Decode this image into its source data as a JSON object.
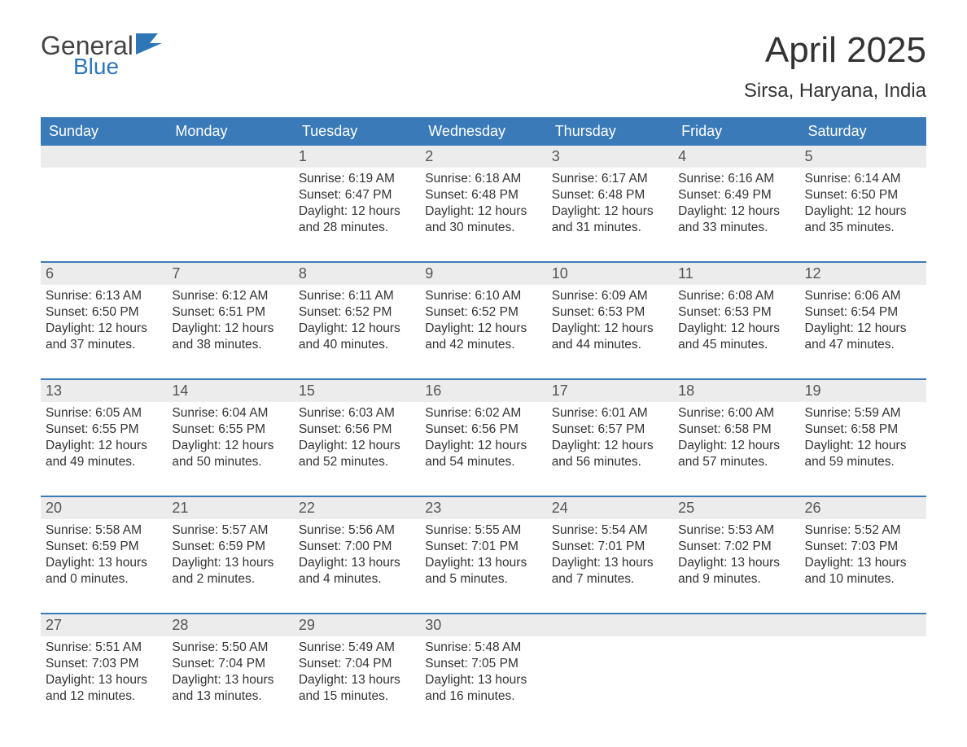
{
  "logo": {
    "general": "General",
    "blue": "Blue",
    "mark_fill": "#2f76b6"
  },
  "title": "April 2025",
  "location": "Sirsa, Haryana, India",
  "colors": {
    "header_bg": "#3a7ab8",
    "header_text": "#ffffff",
    "daynum_bg": "#ececec",
    "body_text": "#333333",
    "page_bg": "#ffffff",
    "week_border": "#3a7ab8"
  },
  "font_sizes": {
    "title_pt": 44,
    "location_pt": 24,
    "weekday_pt": 18,
    "daynum_pt": 18,
    "body_pt": 15.5
  },
  "weekdays": [
    "Sunday",
    "Monday",
    "Tuesday",
    "Wednesday",
    "Thursday",
    "Friday",
    "Saturday"
  ],
  "weeks": [
    [
      {
        "blank": true
      },
      {
        "blank": true
      },
      {
        "n": "1",
        "sunrise": "Sunrise: 6:19 AM",
        "sunset": "Sunset: 6:47 PM",
        "daylight": "Daylight: 12 hours and 28 minutes."
      },
      {
        "n": "2",
        "sunrise": "Sunrise: 6:18 AM",
        "sunset": "Sunset: 6:48 PM",
        "daylight": "Daylight: 12 hours and 30 minutes."
      },
      {
        "n": "3",
        "sunrise": "Sunrise: 6:17 AM",
        "sunset": "Sunset: 6:48 PM",
        "daylight": "Daylight: 12 hours and 31 minutes."
      },
      {
        "n": "4",
        "sunrise": "Sunrise: 6:16 AM",
        "sunset": "Sunset: 6:49 PM",
        "daylight": "Daylight: 12 hours and 33 minutes."
      },
      {
        "n": "5",
        "sunrise": "Sunrise: 6:14 AM",
        "sunset": "Sunset: 6:50 PM",
        "daylight": "Daylight: 12 hours and 35 minutes."
      }
    ],
    [
      {
        "n": "6",
        "sunrise": "Sunrise: 6:13 AM",
        "sunset": "Sunset: 6:50 PM",
        "daylight": "Daylight: 12 hours and 37 minutes."
      },
      {
        "n": "7",
        "sunrise": "Sunrise: 6:12 AM",
        "sunset": "Sunset: 6:51 PM",
        "daylight": "Daylight: 12 hours and 38 minutes."
      },
      {
        "n": "8",
        "sunrise": "Sunrise: 6:11 AM",
        "sunset": "Sunset: 6:52 PM",
        "daylight": "Daylight: 12 hours and 40 minutes."
      },
      {
        "n": "9",
        "sunrise": "Sunrise: 6:10 AM",
        "sunset": "Sunset: 6:52 PM",
        "daylight": "Daylight: 12 hours and 42 minutes."
      },
      {
        "n": "10",
        "sunrise": "Sunrise: 6:09 AM",
        "sunset": "Sunset: 6:53 PM",
        "daylight": "Daylight: 12 hours and 44 minutes."
      },
      {
        "n": "11",
        "sunrise": "Sunrise: 6:08 AM",
        "sunset": "Sunset: 6:53 PM",
        "daylight": "Daylight: 12 hours and 45 minutes."
      },
      {
        "n": "12",
        "sunrise": "Sunrise: 6:06 AM",
        "sunset": "Sunset: 6:54 PM",
        "daylight": "Daylight: 12 hours and 47 minutes."
      }
    ],
    [
      {
        "n": "13",
        "sunrise": "Sunrise: 6:05 AM",
        "sunset": "Sunset: 6:55 PM",
        "daylight": "Daylight: 12 hours and 49 minutes."
      },
      {
        "n": "14",
        "sunrise": "Sunrise: 6:04 AM",
        "sunset": "Sunset: 6:55 PM",
        "daylight": "Daylight: 12 hours and 50 minutes."
      },
      {
        "n": "15",
        "sunrise": "Sunrise: 6:03 AM",
        "sunset": "Sunset: 6:56 PM",
        "daylight": "Daylight: 12 hours and 52 minutes."
      },
      {
        "n": "16",
        "sunrise": "Sunrise: 6:02 AM",
        "sunset": "Sunset: 6:56 PM",
        "daylight": "Daylight: 12 hours and 54 minutes."
      },
      {
        "n": "17",
        "sunrise": "Sunrise: 6:01 AM",
        "sunset": "Sunset: 6:57 PM",
        "daylight": "Daylight: 12 hours and 56 minutes."
      },
      {
        "n": "18",
        "sunrise": "Sunrise: 6:00 AM",
        "sunset": "Sunset: 6:58 PM",
        "daylight": "Daylight: 12 hours and 57 minutes."
      },
      {
        "n": "19",
        "sunrise": "Sunrise: 5:59 AM",
        "sunset": "Sunset: 6:58 PM",
        "daylight": "Daylight: 12 hours and 59 minutes."
      }
    ],
    [
      {
        "n": "20",
        "sunrise": "Sunrise: 5:58 AM",
        "sunset": "Sunset: 6:59 PM",
        "daylight": "Daylight: 13 hours and 0 minutes."
      },
      {
        "n": "21",
        "sunrise": "Sunrise: 5:57 AM",
        "sunset": "Sunset: 6:59 PM",
        "daylight": "Daylight: 13 hours and 2 minutes."
      },
      {
        "n": "22",
        "sunrise": "Sunrise: 5:56 AM",
        "sunset": "Sunset: 7:00 PM",
        "daylight": "Daylight: 13 hours and 4 minutes."
      },
      {
        "n": "23",
        "sunrise": "Sunrise: 5:55 AM",
        "sunset": "Sunset: 7:01 PM",
        "daylight": "Daylight: 13 hours and 5 minutes."
      },
      {
        "n": "24",
        "sunrise": "Sunrise: 5:54 AM",
        "sunset": "Sunset: 7:01 PM",
        "daylight": "Daylight: 13 hours and 7 minutes."
      },
      {
        "n": "25",
        "sunrise": "Sunrise: 5:53 AM",
        "sunset": "Sunset: 7:02 PM",
        "daylight": "Daylight: 13 hours and 9 minutes."
      },
      {
        "n": "26",
        "sunrise": "Sunrise: 5:52 AM",
        "sunset": "Sunset: 7:03 PM",
        "daylight": "Daylight: 13 hours and 10 minutes."
      }
    ],
    [
      {
        "n": "27",
        "sunrise": "Sunrise: 5:51 AM",
        "sunset": "Sunset: 7:03 PM",
        "daylight": "Daylight: 13 hours and 12 minutes."
      },
      {
        "n": "28",
        "sunrise": "Sunrise: 5:50 AM",
        "sunset": "Sunset: 7:04 PM",
        "daylight": "Daylight: 13 hours and 13 minutes."
      },
      {
        "n": "29",
        "sunrise": "Sunrise: 5:49 AM",
        "sunset": "Sunset: 7:04 PM",
        "daylight": "Daylight: 13 hours and 15 minutes."
      },
      {
        "n": "30",
        "sunrise": "Sunrise: 5:48 AM",
        "sunset": "Sunset: 7:05 PM",
        "daylight": "Daylight: 13 hours and 16 minutes."
      },
      {
        "blank": true
      },
      {
        "blank": true
      },
      {
        "blank": true
      }
    ]
  ]
}
